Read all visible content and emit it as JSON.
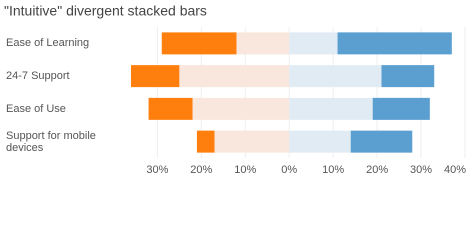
{
  "chart_data": {
    "type": "divergent-stacked-bar",
    "title": "\"Intuitive\" divergent stacked bars",
    "categories": [
      "Ease of Learning",
      "24-7 Support",
      "Ease of Use",
      "Support for mobile devices"
    ],
    "series": [
      {
        "color": "#ff7f0e",
        "values": [
          -17,
          -11,
          -10,
          -4
        ]
      },
      {
        "color": "#f9e6dc",
        "values": [
          -12,
          -25,
          -22,
          -17
        ]
      },
      {
        "color": "#e1ebf4",
        "values": [
          11,
          21,
          19,
          14
        ]
      },
      {
        "color": "#5b9fd0",
        "values": [
          26,
          12,
          13,
          14
        ]
      }
    ],
    "xlim": [
      -38.5,
      40
    ],
    "xticks": [
      {
        "value": -30,
        "label": "30%"
      },
      {
        "value": -20,
        "label": "20%"
      },
      {
        "value": -10,
        "label": "10%"
      },
      {
        "value": 0,
        "label": "0%"
      },
      {
        "value": 10,
        "label": "10%"
      },
      {
        "value": 20,
        "label": "20%"
      },
      {
        "value": 30,
        "label": "30%"
      },
      {
        "value": 40,
        "label": "40%"
      }
    ],
    "grid": true
  }
}
